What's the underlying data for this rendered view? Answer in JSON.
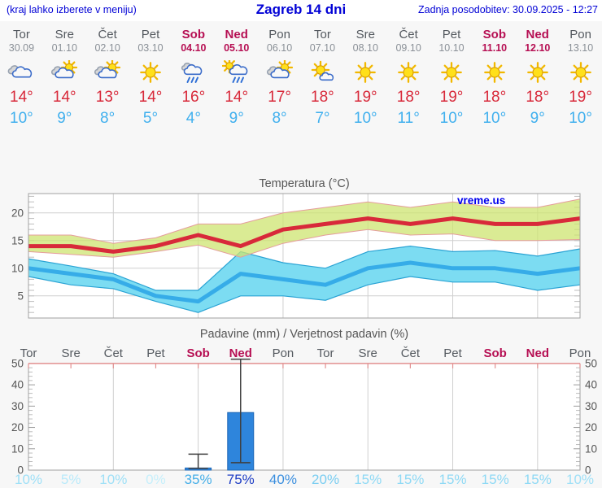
{
  "header": {
    "hint": "(kraj lahko izberete v meniju)",
    "title": "Zagreb 14 dni",
    "updated": "Zadnja posodobitev: 30.09.2025 - 12:27"
  },
  "colors": {
    "header_blue": "#0202d6",
    "weekday_gray": "#54595f",
    "weekend_red": "#b60f53",
    "date_gray": "#8a9097",
    "tmax_red": "#d8293a",
    "tmin_blue": "#41b0ee",
    "axis_gray": "#555555",
    "grid_gray": "#cfcfcf",
    "pink_axis": "#e29090",
    "bar_blue": "#2e85dc"
  },
  "days": [
    {
      "name": "Tor",
      "date": "30.09",
      "weekend": false,
      "icon": "cloudy",
      "tmax_label": "14°",
      "tmin_label": "10°"
    },
    {
      "name": "Sre",
      "date": "01.10",
      "weekend": false,
      "icon": "partly-cloudy",
      "tmax_label": "14°",
      "tmin_label": "9°"
    },
    {
      "name": "Čet",
      "date": "02.10",
      "weekend": false,
      "icon": "partly-cloudy",
      "tmax_label": "13°",
      "tmin_label": "8°"
    },
    {
      "name": "Pet",
      "date": "03.10",
      "weekend": false,
      "icon": "sunny",
      "tmax_label": "14°",
      "tmin_label": "5°"
    },
    {
      "name": "Sob",
      "date": "04.10",
      "weekend": true,
      "icon": "rain",
      "tmax_label": "16°",
      "tmin_label": "4°"
    },
    {
      "name": "Ned",
      "date": "05.10",
      "weekend": true,
      "icon": "sun-rain",
      "tmax_label": "14°",
      "tmin_label": "9°"
    },
    {
      "name": "Pon",
      "date": "06.10",
      "weekend": false,
      "icon": "partly-cloudy",
      "tmax_label": "17°",
      "tmin_label": "8°"
    },
    {
      "name": "Tor",
      "date": "07.10",
      "weekend": false,
      "icon": "mostly-sunny",
      "tmax_label": "18°",
      "tmin_label": "7°"
    },
    {
      "name": "Sre",
      "date": "08.10",
      "weekend": false,
      "icon": "sunny",
      "tmax_label": "19°",
      "tmin_label": "10°"
    },
    {
      "name": "Čet",
      "date": "09.10",
      "weekend": false,
      "icon": "sunny",
      "tmax_label": "18°",
      "tmin_label": "11°"
    },
    {
      "name": "Pet",
      "date": "10.10",
      "weekend": false,
      "icon": "sunny",
      "tmax_label": "19°",
      "tmin_label": "10°"
    },
    {
      "name": "Sob",
      "date": "11.10",
      "weekend": true,
      "icon": "sunny",
      "tmax_label": "18°",
      "tmin_label": "10°"
    },
    {
      "name": "Ned",
      "date": "12.10",
      "weekend": true,
      "icon": "sunny",
      "tmax_label": "18°",
      "tmin_label": "9°"
    },
    {
      "name": "Pon",
      "date": "13.10",
      "weekend": false,
      "icon": "sunny",
      "tmax_label": "19°",
      "tmin_label": "10°"
    }
  ],
  "chart_data": [
    {
      "type": "line",
      "title": "Temperatura (°C)",
      "watermark": "vreme.us",
      "categories": [
        "Tor 30.09",
        "Sre 01.10",
        "Čet 02.10",
        "Pet 03.10",
        "Sob 04.10",
        "Ned 05.10",
        "Pon 06.10",
        "Tor 07.10",
        "Sre 08.10",
        "Čet 09.10",
        "Pet 10.10",
        "Sob 11.10",
        "Ned 12.10",
        "Pon 13.10"
      ],
      "ylim": [
        1,
        23.5
      ],
      "yticks": [
        5,
        10,
        15,
        20
      ],
      "grid_x_indices": [
        2,
        4,
        6,
        8,
        10,
        12
      ],
      "series": [
        {
          "name": "Max temperatura",
          "color": "#d8293a",
          "values": [
            14,
            14,
            13,
            14,
            16,
            14,
            17,
            18,
            19,
            18,
            19,
            18,
            18,
            19
          ]
        },
        {
          "name": "Min temperatura",
          "color": "#36ace8",
          "values": [
            10,
            9,
            8,
            5,
            4,
            9,
            8,
            7,
            10,
            11,
            10,
            10,
            9,
            10
          ]
        }
      ],
      "bands": [
        {
          "name": "Max temperatura razpon",
          "fill": "rgba(206,228,112,0.75)",
          "edge": "#e59c9c",
          "upper": [
            16,
            16,
            14.5,
            15.5,
            18,
            18,
            20,
            21,
            22,
            21,
            22,
            21,
            21,
            22.5
          ],
          "lower": [
            13,
            12.5,
            12,
            13,
            14.2,
            12,
            14.5,
            16,
            17,
            16,
            16.2,
            15,
            15,
            15.2
          ]
        },
        {
          "name": "Min temperatura razpon",
          "fill": "#7cdcf2",
          "edge": "#2aa3d4",
          "upper": [
            11.7,
            10.4,
            9,
            6,
            6,
            13,
            11,
            10,
            13,
            14,
            13,
            13.2,
            12.2,
            13.5
          ],
          "lower": [
            8.5,
            7,
            6.3,
            4,
            2,
            5,
            5,
            4.2,
            7,
            8.5,
            7.5,
            7.5,
            6,
            7
          ]
        }
      ]
    },
    {
      "type": "bar",
      "title": "Padavine (mm) / Verjetnost padavin (%)",
      "categories": [
        "Tor",
        "Sre",
        "Čet",
        "Pet",
        "Sob",
        "Ned",
        "Pon",
        "Tor",
        "Sre",
        "Čet",
        "Pet",
        "Sob",
        "Ned",
        "Pon"
      ],
      "ylim": [
        0,
        50
      ],
      "yticks": [
        0,
        10,
        20,
        30,
        40,
        50
      ],
      "grid_x_indices": [
        2,
        4,
        6,
        8,
        10,
        12
      ],
      "values_mm": [
        0,
        0,
        0,
        0,
        1,
        27,
        0,
        0,
        0,
        0,
        0,
        0,
        0,
        0
      ],
      "whiskers": [
        null,
        null,
        null,
        null,
        [
          0.8,
          7.5
        ],
        [
          3.5,
          52
        ],
        null,
        null,
        null,
        null,
        null,
        null,
        null,
        null
      ],
      "bar_color": "#2e85dc",
      "probabilities": [
        {
          "label": "10%",
          "value": 10,
          "color": "#9fe0f7"
        },
        {
          "label": "5%",
          "value": 5,
          "color": "#b9eafa"
        },
        {
          "label": "10%",
          "value": 10,
          "color": "#9fe0f7"
        },
        {
          "label": "0%",
          "value": 0,
          "color": "#c6effb"
        },
        {
          "label": "35%",
          "value": 35,
          "color": "#45aee8"
        },
        {
          "label": "75%",
          "value": 75,
          "color": "#1c3cc4"
        },
        {
          "label": "40%",
          "value": 40,
          "color": "#3b8fdf"
        },
        {
          "label": "20%",
          "value": 20,
          "color": "#79cdf1"
        },
        {
          "label": "15%",
          "value": 15,
          "color": "#8ed9f5"
        },
        {
          "label": "15%",
          "value": 15,
          "color": "#8ed9f5"
        },
        {
          "label": "15%",
          "value": 15,
          "color": "#8ed9f5"
        },
        {
          "label": "15%",
          "value": 15,
          "color": "#8ed9f5"
        },
        {
          "label": "15%",
          "value": 15,
          "color": "#8ed9f5"
        },
        {
          "label": "10%",
          "value": 10,
          "color": "#9fe0f7"
        }
      ]
    }
  ]
}
